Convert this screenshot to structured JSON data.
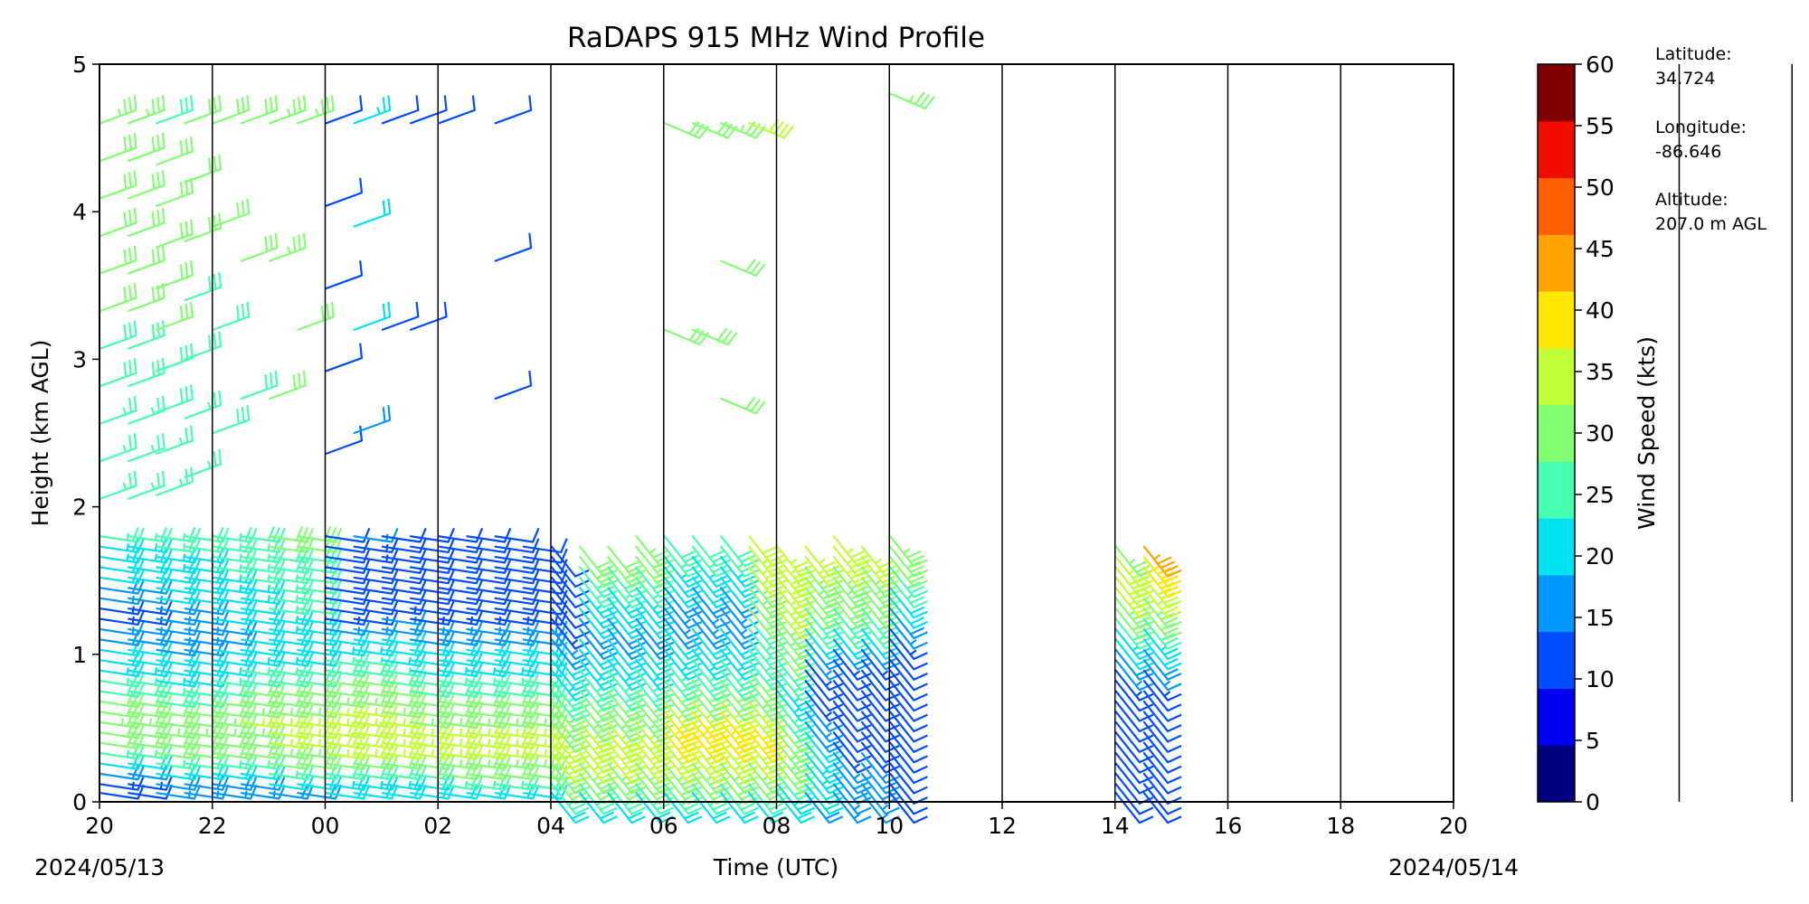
{
  "chart_data": {
    "type": "wind-barbs",
    "title": "RaDAPS 915 MHz Wind Profile",
    "xlabel": "Time (UTC)",
    "ylabel": "Height (km AGL)",
    "x_ticks": [
      "20",
      "22",
      "00",
      "02",
      "04",
      "06",
      "08",
      "10",
      "12",
      "14",
      "16",
      "18",
      "20"
    ],
    "x_range_hours": [
      0,
      24
    ],
    "start_date": "2024/05/13",
    "end_date": "2024/05/14",
    "y_ticks": [
      "0",
      "1",
      "2",
      "3",
      "4",
      "5"
    ],
    "ylim": [
      0,
      5
    ],
    "grid": "vertical lines every 1 hour",
    "colorbar": {
      "label": "Wind Speed (kts)",
      "ticks": [
        "0",
        "5",
        "10",
        "15",
        "20",
        "25",
        "30",
        "35",
        "40",
        "45",
        "50",
        "55",
        "60"
      ],
      "colors": [
        "#00007f",
        "#0000f1",
        "#004cff",
        "#0098ff",
        "#00e2ef",
        "#46ffb0",
        "#83ff73",
        "#c1ff36",
        "#ffe800",
        "#ffa300",
        "#ff5f00",
        "#f10c00",
        "#7f0000"
      ]
    },
    "station": {
      "latitude_label": "Latitude:",
      "latitude": "34.724",
      "longitude_label": "Longitude:",
      "longitude": "-86.646",
      "altitude_label": "Altitude:",
      "altitude": "207.0 m AGL"
    },
    "profiles": [
      {
        "t": 0.0,
        "s": [
          12,
          14,
          18,
          22,
          26,
          30,
          32,
          33,
          32,
          30,
          28,
          26,
          24,
          22,
          20,
          18,
          16,
          14,
          14,
          16,
          18,
          20,
          22,
          24,
          24,
          25,
          26,
          26,
          27,
          28,
          28,
          30,
          31,
          32,
          32,
          32,
          33
        ]
      },
      {
        "t": 0.5,
        "s": [
          12,
          14,
          18,
          22,
          26,
          30,
          32,
          33,
          32,
          30,
          28,
          26,
          24,
          22,
          20,
          18,
          16,
          14,
          14,
          16,
          18,
          20,
          22,
          24,
          24,
          25,
          26,
          26,
          27,
          28,
          28,
          30,
          31,
          32,
          32,
          32,
          33
        ]
      },
      {
        "t": 1.0,
        "s": [
          15,
          18,
          22,
          26,
          30,
          32,
          33,
          32,
          30,
          28,
          26,
          24,
          22,
          20,
          18,
          16,
          15,
          16,
          18,
          20,
          22,
          22,
          24,
          24,
          25,
          26,
          26,
          27,
          28,
          28,
          30,
          31,
          32,
          32,
          30,
          28
        ]
      },
      {
        "t": 1.5,
        "s": [
          15,
          18,
          22,
          26,
          30,
          32,
          33,
          32,
          30,
          28,
          26,
          24,
          22,
          20,
          18,
          16,
          15,
          16,
          18,
          20,
          22,
          22,
          24,
          24,
          25,
          26,
          26,
          27,
          28,
          28,
          30,
          31,
          32
        ]
      },
      {
        "t": 2.0,
        "s": [
          15,
          18,
          22,
          26,
          30,
          32,
          34,
          34,
          32,
          30,
          28,
          26,
          24,
          22,
          20,
          18,
          18,
          20,
          22,
          22,
          24,
          24,
          25,
          26,
          26,
          27,
          28,
          28,
          30,
          31
        ]
      },
      {
        "t": 2.5,
        "s": [
          15,
          18,
          22,
          26,
          30,
          32,
          34,
          35,
          34,
          32,
          30,
          28,
          26,
          24,
          22,
          20,
          20,
          22,
          22,
          24,
          24,
          25,
          26,
          26,
          27,
          28,
          28,
          30,
          31
        ]
      },
      {
        "t": 3.0,
        "s": [
          18,
          22,
          26,
          30,
          33,
          35,
          36,
          35,
          34,
          32,
          30,
          28,
          26,
          24,
          22,
          22,
          24,
          24,
          25,
          26,
          26,
          27,
          28,
          28,
          30,
          31,
          32,
          33,
          34
        ]
      },
      {
        "t": 3.5,
        "s": [
          18,
          22,
          26,
          30,
          33,
          35,
          36,
          35,
          34,
          32,
          30,
          28,
          26,
          24,
          22,
          22,
          24,
          24,
          25,
          26,
          26,
          27,
          28,
          28,
          30,
          31,
          32,
          33
        ]
      },
      {
        "t": 4.0,
        "s": [
          20,
          24,
          28,
          32,
          36,
          38,
          38,
          37,
          36,
          34,
          32,
          30,
          28,
          26,
          24,
          20,
          16,
          14,
          12,
          12,
          12,
          12,
          12,
          12,
          12,
          12,
          12,
          12,
          12,
          12,
          12
        ]
      },
      {
        "t": 4.5,
        "s": [
          20,
          24,
          28,
          32,
          36,
          38,
          38,
          37,
          36,
          34,
          32,
          30,
          28,
          26,
          24,
          20,
          16,
          14,
          12,
          12,
          12,
          12,
          12,
          14,
          14,
          16,
          18,
          20,
          22,
          24
        ]
      },
      {
        "t": 5.0,
        "s": [
          20,
          24,
          28,
          32,
          35,
          36,
          36,
          35,
          34,
          32,
          30,
          28,
          26,
          24,
          22,
          20,
          18,
          16,
          14,
          12,
          12,
          12,
          12,
          12,
          12,
          12,
          12,
          12
        ]
      },
      {
        "t": 5.5,
        "s": [
          20,
          24,
          28,
          32,
          35,
          36,
          35,
          34,
          32,
          30,
          28,
          26,
          24,
          22,
          20,
          18,
          16,
          14,
          12,
          12,
          12,
          12,
          12,
          12,
          12,
          12,
          12,
          12
        ]
      },
      {
        "t": 6.0,
        "s": [
          22,
          26,
          30,
          34,
          36,
          36,
          35,
          34,
          32,
          30,
          28,
          26,
          24,
          22,
          20,
          18,
          16,
          14,
          12,
          12,
          12,
          12,
          12,
          12,
          12,
          12,
          12
        ]
      },
      {
        "t": 6.5,
        "s": [
          22,
          26,
          30,
          34,
          36,
          36,
          35,
          34,
          32,
          30,
          28,
          26,
          24,
          22,
          20,
          18,
          16,
          14,
          12,
          12,
          12,
          12,
          12,
          12,
          12,
          12
        ]
      },
      {
        "t": 7.0,
        "s": [
          22,
          26,
          30,
          34,
          36,
          36,
          35,
          34,
          32,
          30,
          28,
          26,
          24,
          22,
          20,
          18,
          16,
          14,
          12,
          12,
          12,
          12,
          12,
          12,
          12,
          12,
          12,
          12,
          12
        ]
      },
      {
        "t": 7.5,
        "s": [
          22,
          26,
          30,
          34,
          36,
          36,
          35,
          34,
          32,
          30,
          28,
          26,
          24,
          22,
          20,
          18,
          16,
          14,
          12,
          12,
          12,
          12,
          12,
          12,
          12
        ]
      },
      {
        "t": 8.0,
        "s": [
          22,
          26,
          30,
          34,
          36,
          36,
          35,
          34,
          32,
          30,
          28,
          26,
          24,
          22,
          20,
          18,
          16,
          14,
          12,
          12,
          12,
          12,
          12,
          12,
          12
        ]
      },
      {
        "t": 8.5,
        "s": [
          22,
          26,
          30,
          34,
          36,
          38,
          38,
          36,
          34,
          32,
          30,
          28,
          26,
          24,
          22,
          20,
          18,
          18,
          20,
          22,
          24,
          26,
          28,
          30,
          32
        ]
      },
      {
        "t": 9.0,
        "s": [
          22,
          26,
          30,
          34,
          36,
          38,
          38,
          36,
          34,
          32,
          30,
          28,
          26,
          24,
          22,
          20,
          18,
          18,
          20,
          22,
          24,
          26,
          28,
          30,
          32
        ]
      },
      {
        "t": 9.5,
        "s": [
          22,
          26,
          30,
          34,
          36,
          38,
          38,
          36,
          34,
          32,
          30,
          28,
          26,
          24,
          22,
          20,
          18,
          18,
          20,
          22,
          24,
          26,
          28,
          30,
          32,
          33
        ]
      },
      {
        "t": 10.0,
        "s": [
          22,
          26,
          30,
          34,
          36,
          38,
          40,
          44,
          40,
          36,
          32,
          30,
          28,
          26,
          24,
          22,
          20,
          18,
          16,
          16,
          18,
          20,
          22,
          24,
          26,
          28,
          30,
          32
        ]
      },
      {
        "t": 10.5,
        "s": [
          22,
          26,
          30,
          34,
          36,
          38,
          40,
          44,
          40,
          36,
          32,
          30,
          28,
          26,
          24,
          22,
          20,
          18,
          16,
          16,
          18,
          20,
          22,
          24,
          26,
          28,
          30,
          32
        ]
      },
      {
        "t": 11.0,
        "s": [
          22,
          26,
          30,
          34,
          36,
          38,
          40,
          44,
          40,
          36,
          32,
          30,
          28,
          26,
          24,
          22,
          20,
          18,
          16,
          16,
          18,
          20,
          22,
          24,
          26,
          28,
          30,
          32,
          33
        ]
      },
      {
        "t": 11.5,
        "s": [
          22,
          26,
          30,
          34,
          36,
          38,
          40,
          40,
          38,
          36,
          34,
          32,
          30,
          28,
          26,
          26,
          27,
          28,
          30,
          32,
          33,
          34,
          35,
          36,
          37,
          38,
          38
        ]
      },
      {
        "t": 12.0,
        "s": [
          20,
          24,
          28,
          32,
          34,
          34,
          32,
          30,
          28,
          26,
          24,
          24,
          26,
          28,
          30,
          32,
          33,
          34,
          35,
          36,
          37,
          38,
          38,
          37,
          36
        ]
      },
      {
        "t": 12.5,
        "s": [
          18,
          20,
          22,
          24,
          24,
          22,
          20,
          18,
          16,
          16,
          14,
          12,
          12,
          14,
          16,
          18,
          22,
          26,
          28,
          30,
          32,
          33,
          34,
          35,
          36
        ]
      },
      {
        "t": 13.0,
        "s": [
          15,
          16,
          18,
          18,
          16,
          14,
          12,
          12,
          12,
          12,
          12,
          12,
          10,
          12,
          14,
          18,
          22,
          26,
          28,
          30,
          32,
          33,
          34,
          35,
          36,
          36
        ]
      },
      {
        "t": 13.5,
        "s": [
          15,
          16,
          18,
          18,
          16,
          14,
          12,
          12,
          12,
          12,
          12,
          12,
          10,
          12,
          14,
          18,
          22,
          26,
          28,
          30,
          32,
          33,
          34,
          35,
          36
        ]
      },
      {
        "t": 14.0,
        "s": [
          12,
          12,
          12,
          12,
          12,
          12,
          12,
          12,
          12,
          12,
          12,
          12,
          12,
          12,
          12,
          12,
          14,
          16,
          18,
          20,
          22,
          26,
          28,
          30,
          32,
          33,
          34
        ]
      },
      {
        "t": 18.0,
        "s": [
          10,
          10,
          10,
          10,
          10,
          10,
          10,
          10,
          10,
          10,
          10,
          12,
          14,
          16,
          18,
          20,
          24,
          28,
          32,
          34,
          36,
          38,
          38,
          36,
          34
        ]
      },
      {
        "t": 18.5,
        "s": [
          10,
          10,
          10,
          10,
          10,
          10,
          10,
          10,
          10,
          10,
          10,
          12,
          14,
          16,
          18,
          20,
          24,
          28,
          32,
          34,
          36,
          38,
          40,
          44,
          46
        ]
      }
    ]
  }
}
